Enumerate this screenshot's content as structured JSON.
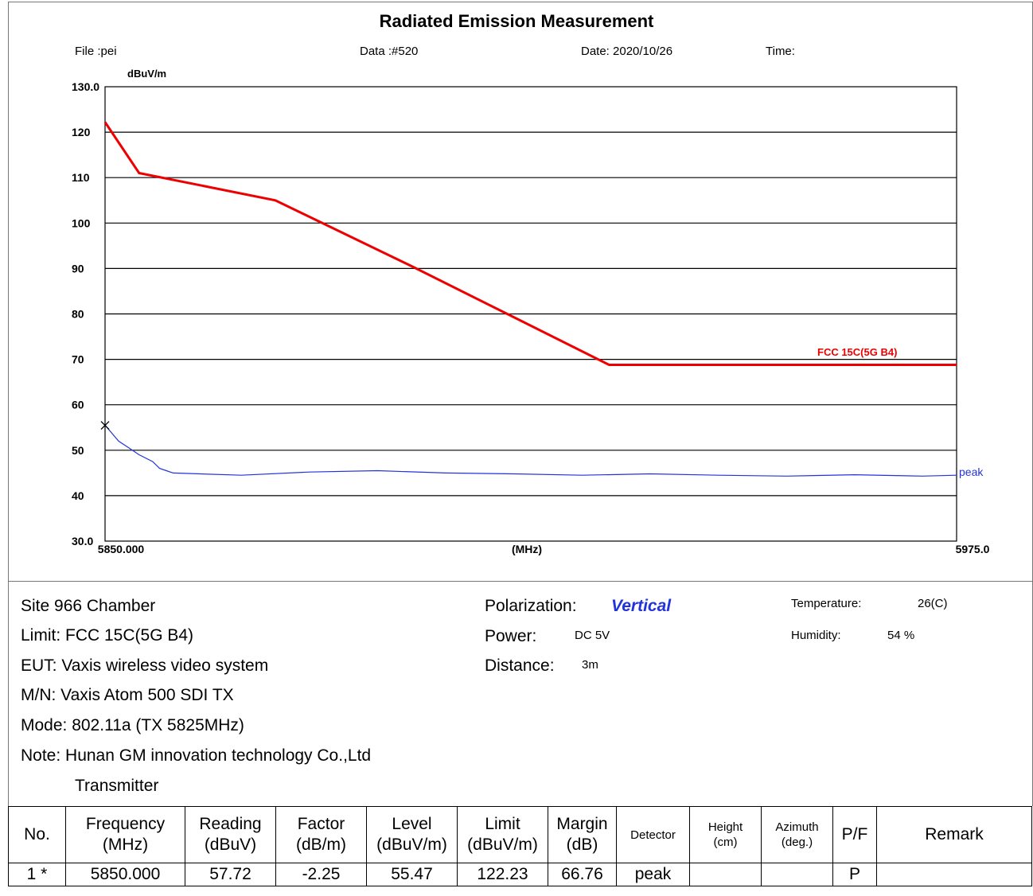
{
  "header": {
    "title": "Radiated Emission Measurement",
    "file": "File :pei",
    "data": "Data :#520",
    "date": "Date: 2020/10/26",
    "time": "Time:"
  },
  "chart_data": {
    "type": "line",
    "ylabel": "dBuV/m",
    "xlabel": "(MHz)",
    "xlim": [
      5850.0,
      5975.0
    ],
    "ylim": [
      30.0,
      130.0
    ],
    "x_start_label": "5850.000",
    "x_end_label": "5975.0",
    "y_tick_labels": [
      "130.0",
      "120",
      "110",
      "100",
      "90",
      "80",
      "70",
      "60",
      "50",
      "40",
      "30.0"
    ],
    "y_ticks": [
      130,
      120,
      110,
      100,
      90,
      80,
      70,
      60,
      50,
      40,
      30
    ],
    "grid": true,
    "series": [
      {
        "name": "FCC 15C(5G B4)",
        "color": "#ee0000",
        "x": [
          5850.0,
          5855.0,
          5865.0,
          5875.0,
          5895.0,
          5924.0,
          5925.0,
          5975.0
        ],
        "y": [
          122.2,
          111.0,
          108.0,
          105.0,
          90.5,
          68.8,
          68.8,
          68.8
        ]
      },
      {
        "name": "peak",
        "color": "#2233dd",
        "x": [
          5850.0,
          5852.0,
          5853.5,
          5855.0,
          5857.0,
          5858.0,
          5859.0,
          5860.0,
          5870.0,
          5880.0,
          5890.0,
          5900.0,
          5910.0,
          5920.0,
          5930.0,
          5940.0,
          5950.0,
          5960.0,
          5970.0,
          5975.0
        ],
        "y": [
          55.5,
          52.0,
          50.5,
          49.0,
          47.5,
          46.0,
          45.5,
          45.0,
          44.5,
          45.2,
          45.5,
          45.0,
          44.8,
          44.5,
          44.8,
          44.5,
          44.3,
          44.6,
          44.3,
          44.5
        ]
      }
    ],
    "marker": {
      "x": 5850.0,
      "y": 55.47,
      "symbol": "x"
    }
  },
  "info": {
    "site": "Site  966 Chamber",
    "limit": "Limit:  FCC 15C(5G B4)",
    "eut": "EUT:  Vaxis wireless video system",
    "mn": "M/N:  Vaxis Atom 500 SDI TX",
    "mode": "Mode:  802.11a (TX 5825MHz)",
    "note": "Note:  Hunan GM innovation technology Co.,Ltd",
    "note2": "Transmitter",
    "polarization_label": "Polarization:",
    "polarization_value": "Vertical",
    "power_label": "Power:",
    "power_value": "DC 5V",
    "distance_label": "Distance:",
    "distance_value": "3m",
    "temperature_label": "Temperature:",
    "temperature_value": "26(C)",
    "humidity_label": "Humidity:",
    "humidity_value": "54 %"
  },
  "table": {
    "headers": [
      {
        "l1": "No.",
        "l2": ""
      },
      {
        "l1": "Frequency",
        "l2": "(MHz)"
      },
      {
        "l1": "Reading",
        "l2": "(dBuV)"
      },
      {
        "l1": "Factor",
        "l2": "(dB/m)"
      },
      {
        "l1": "Level",
        "l2": "(dBuV/m)"
      },
      {
        "l1": "Limit",
        "l2": "(dBuV/m)"
      },
      {
        "l1": "Margin",
        "l2": "(dB)"
      },
      {
        "l1": "Detector",
        "l2": ""
      },
      {
        "l1": "Height",
        "l2": "(cm)"
      },
      {
        "l1": "Azimuth",
        "l2": "(deg.)"
      },
      {
        "l1": "P/F",
        "l2": ""
      },
      {
        "l1": "Remark",
        "l2": ""
      }
    ],
    "rows": [
      [
        "1  *",
        "5850.000",
        "57.72",
        "-2.25",
        "55.47",
        "122.23",
        "66.76",
        "peak",
        "",
        "",
        "P",
        ""
      ]
    ]
  }
}
